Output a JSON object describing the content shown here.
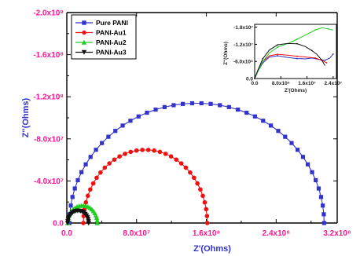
{
  "chart_data": [
    {
      "type": "scatter",
      "xlabel": "Z'(Ohms)",
      "ylabel": "Z''(Ohms)",
      "xlim": [
        0,
        310000000
      ],
      "ylim": [
        0,
        -200000000
      ],
      "x_ticks": [
        "0.0",
        "8.0x10⁷",
        "1.6x10⁸",
        "2.4x10⁸",
        "3.2x10⁸"
      ],
      "y_ticks": [
        "0.0",
        "-4.0x10⁷",
        "-8.0x10⁷",
        "-1.2x10⁸",
        "-1.6x10⁸",
        "-2.0x10⁸"
      ],
      "legend_position": "top-left",
      "series": [
        {
          "name": "Pure PANI",
          "color": "#3333cc",
          "marker": "square",
          "center": 149000000,
          "radius": 146000000,
          "y_scale": 0.78,
          "n": 44
        },
        {
          "name": "PANI-Au1",
          "color": "#ee1111",
          "marker": "circle",
          "center": 90000000,
          "radius": 71000000,
          "y_scale": 0.98,
          "n": 34
        },
        {
          "name": "PANI-Au2",
          "color": "#22cc22",
          "marker": "triangle-up",
          "center": 18000000,
          "radius": 17000000,
          "y_scale": 0.98,
          "n": 22
        },
        {
          "name": "PANI-Au3",
          "color": "#111111",
          "marker": "triangle-down",
          "center": 13000000,
          "radius": 12000000,
          "y_scale": 0.98,
          "n": 20
        }
      ]
    },
    {
      "type": "line",
      "xlabel": "Z'(Ohms)",
      "ylabel": "Z''(Ohms)",
      "xlim": [
        0,
        25000000
      ],
      "ylim": [
        0,
        -19000000
      ],
      "x_ticks": [
        "0.0",
        "8.0x10⁶",
        "1.6x10⁷",
        "2.4x10⁷"
      ],
      "y_ticks": [
        "0.0",
        "-6.0x10⁶",
        "-1.2x10⁷",
        "-1.8x10⁷"
      ],
      "series": [
        {
          "name": "Pure PANI",
          "color": "#3333cc",
          "points": [
            [
              0,
              0
            ],
            [
              1000000,
              -2500000
            ],
            [
              2500000,
              -5500000
            ],
            [
              4500000,
              -7500000
            ],
            [
              7000000,
              -8000000
            ],
            [
              10000000,
              -7400000
            ],
            [
              13000000,
              -7000000
            ],
            [
              15500000,
              -6900000
            ],
            [
              17500000,
              -7200000
            ],
            [
              19500000,
              -6700000
            ],
            [
              21500000,
              -6400000
            ],
            [
              23000000,
              -7200000
            ],
            [
              24000000,
              -8600000
            ]
          ]
        },
        {
          "name": "PANI-Au1",
          "color": "#ee1111",
          "points": [
            [
              0,
              0
            ],
            [
              1000000,
              -3000000
            ],
            [
              2500000,
              -6000000
            ],
            [
              4500000,
              -8000000
            ],
            [
              7000000,
              -8500000
            ],
            [
              10000000,
              -8200000
            ],
            [
              13000000,
              -7800000
            ],
            [
              16000000,
              -7500000
            ],
            [
              18500000,
              -7200000
            ],
            [
              20500000,
              -6400000
            ],
            [
              22000000,
              -5500000
            ]
          ]
        },
        {
          "name": "PANI-Au2",
          "color": "#22cc22",
          "points": [
            [
              0,
              0
            ],
            [
              1000000,
              -2500000
            ],
            [
              2500000,
              -6000000
            ],
            [
              4500000,
              -9000000
            ],
            [
              7000000,
              -11000000
            ],
            [
              10000000,
              -12200000
            ],
            [
              13000000,
              -13800000
            ],
            [
              16000000,
              -15500000
            ],
            [
              18500000,
              -17000000
            ],
            [
              20500000,
              -17800000
            ],
            [
              22500000,
              -17400000
            ],
            [
              24000000,
              -17000000
            ]
          ]
        },
        {
          "name": "PANI-Au3",
          "color": "#111111",
          "points": [
            [
              0,
              0
            ],
            [
              1000000,
              -3000000
            ],
            [
              2500000,
              -7000000
            ],
            [
              4500000,
              -10000000
            ],
            [
              7000000,
              -11800000
            ],
            [
              10000000,
              -12300000
            ],
            [
              13000000,
              -12200000
            ],
            [
              15500000,
              -11200000
            ],
            [
              17500000,
              -9800000
            ],
            [
              19000000,
              -8500000
            ],
            [
              20500000,
              -6500000
            ],
            [
              21500000,
              -4500000
            ]
          ]
        }
      ]
    }
  ]
}
